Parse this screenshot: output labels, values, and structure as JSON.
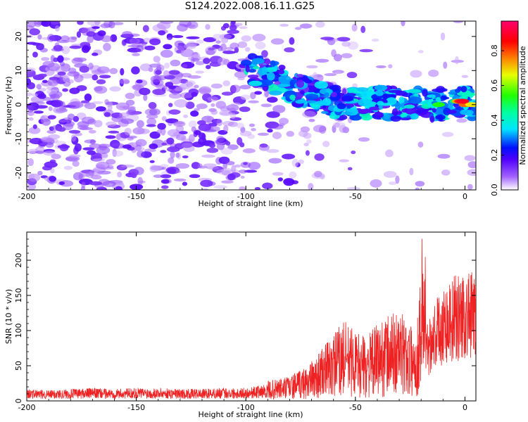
{
  "title": "S124.2022.008.16.11.G25",
  "chart_data": [
    {
      "type": "heatmap",
      "xlabel": "Height of straight line (km)",
      "ylabel": "Frequency (Hz)",
      "xlim": [
        -200,
        5
      ],
      "ylim": [
        -25,
        24.5
      ],
      "xticks": [
        "-200",
        "-150",
        "-100",
        "-50",
        "0"
      ],
      "yticks": [
        "-20",
        "-10",
        "0",
        "10",
        "20"
      ],
      "colorbar": {
        "label": "Normalized spectral amplitude",
        "range": [
          0,
          0.97
        ],
        "ticks": [
          "0.0",
          "0.2",
          "0.4",
          "0.6",
          "0.8"
        ],
        "colormap": [
          "#ffffff",
          "#8a00ff",
          "#0000ff",
          "#00e5ff",
          "#00ff3a",
          "#e8ff00",
          "#ff7a00",
          "#ff0000",
          "#ff0060"
        ]
      },
      "signal_track": {
        "x": [
          -100,
          -90,
          -80,
          -70,
          -60,
          -50,
          -40,
          -30,
          -20,
          -10,
          0,
          5
        ],
        "y": [
          10,
          9,
          5,
          3,
          1,
          0,
          1,
          0,
          0,
          0,
          1,
          0
        ]
      }
    },
    {
      "type": "line",
      "xlabel": "Height of straight line (km)",
      "ylabel": "SNR (10 * v/v)",
      "xlim": [
        -200,
        5
      ],
      "ylim": [
        0,
        240
      ],
      "xticks": [
        "-200",
        "-150",
        "-100",
        "-50",
        "0"
      ],
      "yticks": [
        "0",
        "50",
        "100",
        "150",
        "200"
      ],
      "color": "#ee2222",
      "series": [
        {
          "x": [
            -200,
            -190,
            -180,
            -170,
            -160,
            -150,
            -140,
            -130,
            -120,
            -110,
            -100,
            -90,
            -85,
            -80,
            -75,
            -70,
            -65,
            -60,
            -55,
            -50,
            -45,
            -40,
            -35,
            -30,
            -25,
            -22,
            -20,
            -18,
            -15,
            -10,
            -5,
            0,
            5
          ],
          "y": [
            10,
            9,
            10,
            11,
            10,
            11,
            11,
            10,
            10,
            11,
            11,
            14,
            16,
            18,
            22,
            28,
            38,
            48,
            58,
            50,
            45,
            55,
            62,
            65,
            55,
            48,
            110,
            90,
            120,
            145,
            155,
            162,
            160
          ]
        }
      ]
    }
  ]
}
